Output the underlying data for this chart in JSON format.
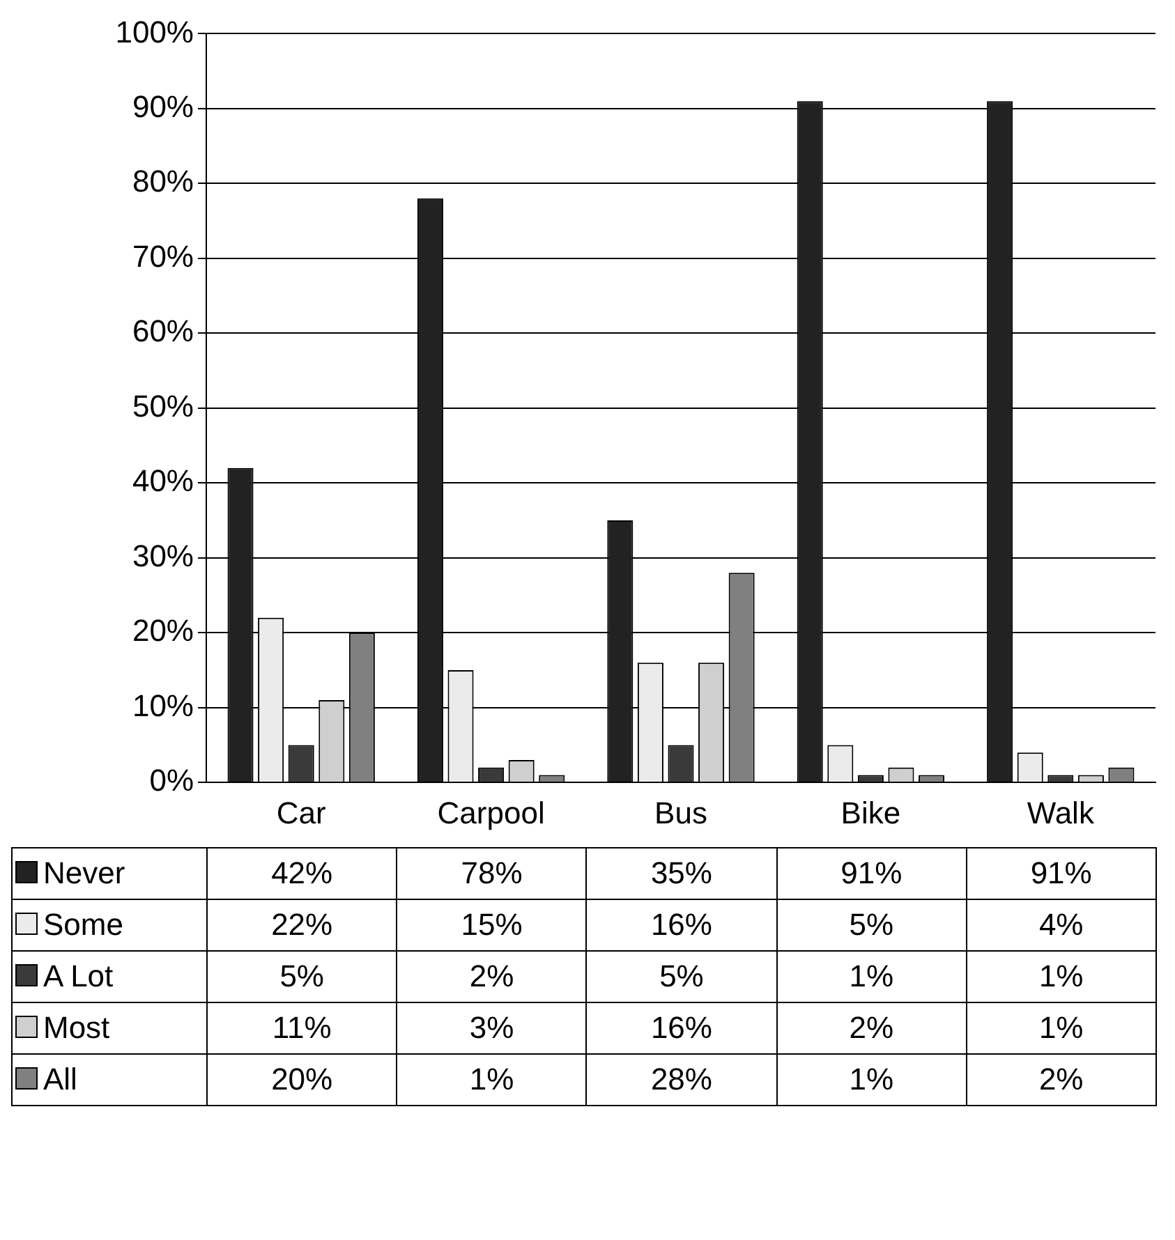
{
  "chart_data": {
    "type": "bar",
    "categories": [
      "Car",
      "Carpool",
      "Bus",
      "Bike",
      "Walk"
    ],
    "series": [
      {
        "name": "Never",
        "color": "#222222",
        "values": [
          42,
          78,
          35,
          91,
          91
        ],
        "value_labels": [
          "42%",
          "78%",
          "35%",
          "91%",
          "91%"
        ]
      },
      {
        "name": "Some",
        "color": "#ebebeb",
        "values": [
          22,
          15,
          16,
          5,
          4
        ],
        "value_labels": [
          "22%",
          "15%",
          "16%",
          "5%",
          "4%"
        ]
      },
      {
        "name": "A Lot",
        "color": "#3a3a3a",
        "values": [
          5,
          2,
          5,
          1,
          1
        ],
        "value_labels": [
          "5%",
          "2%",
          "5%",
          "1%",
          "1%"
        ]
      },
      {
        "name": "Most",
        "color": "#cfcfcf",
        "values": [
          11,
          3,
          16,
          2,
          1
        ],
        "value_labels": [
          "11%",
          "3%",
          "16%",
          "2%",
          "1%"
        ]
      },
      {
        "name": "All",
        "color": "#808080",
        "values": [
          20,
          1,
          28,
          1,
          2
        ],
        "value_labels": [
          "20%",
          "1%",
          "28%",
          "1%",
          "2%"
        ]
      }
    ],
    "ylim": [
      0,
      100
    ],
    "yticks": [
      {
        "value": 0,
        "label": "0%"
      },
      {
        "value": 10,
        "label": "10%"
      },
      {
        "value": 20,
        "label": "20%"
      },
      {
        "value": 30,
        "label": "30%"
      },
      {
        "value": 40,
        "label": "40%"
      },
      {
        "value": 50,
        "label": "50%"
      },
      {
        "value": 60,
        "label": "60%"
      },
      {
        "value": 70,
        "label": "70%"
      },
      {
        "value": 80,
        "label": "80%"
      },
      {
        "value": 90,
        "label": "90%"
      },
      {
        "value": 100,
        "label": "100%"
      }
    ],
    "grid": "y",
    "legend": "bottom"
  }
}
